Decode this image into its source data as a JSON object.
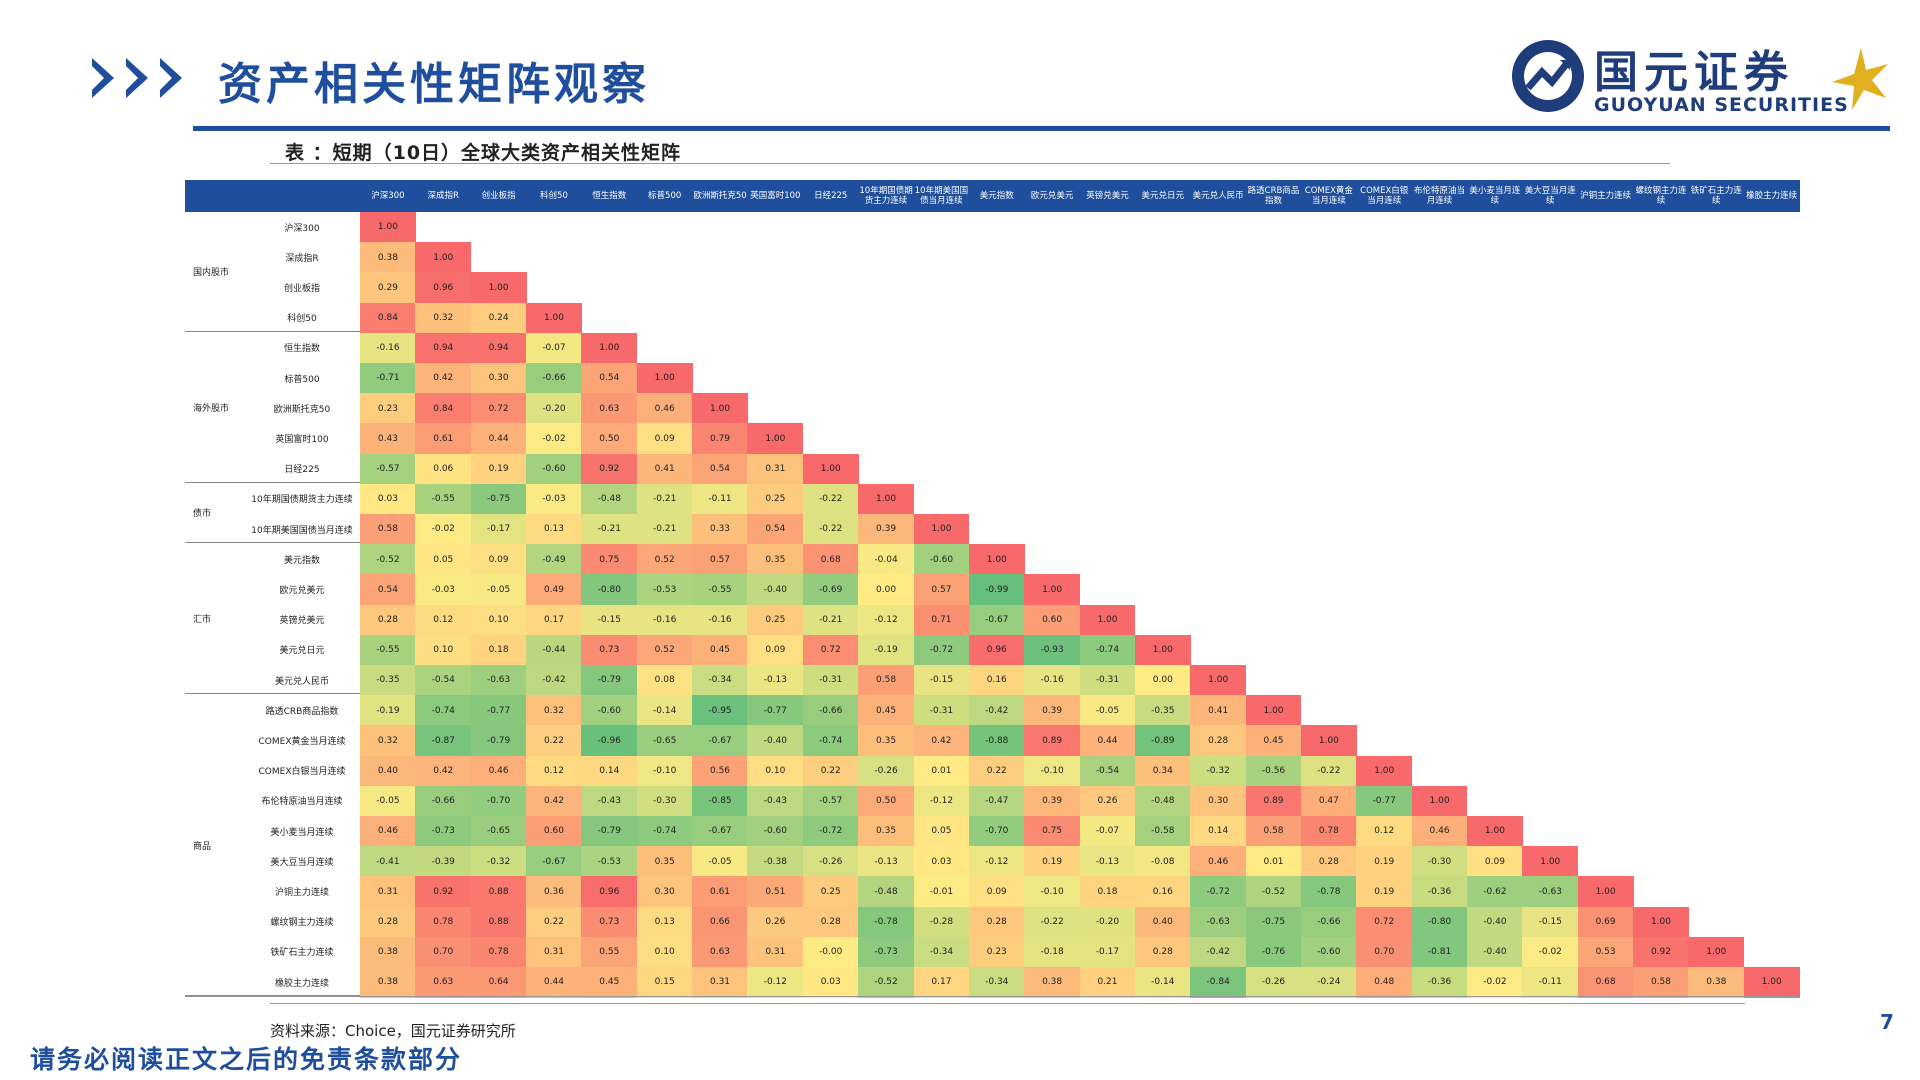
{
  "header": {
    "title": "资产相关性矩阵观察",
    "logo_cn": "国元证券",
    "logo_en": "GUOYUAN SECURITIES",
    "accent_color": "#1f4e9c"
  },
  "table": {
    "caption": "表 ：短期（10日）全球大类资产相关性矩阵",
    "assets": [
      "沪深300",
      "深成指R",
      "创业板指",
      "科创50",
      "恒生指数",
      "标普500",
      "欧洲斯托克50",
      "英国富时100",
      "日经225",
      "10年期国债期货主力连续",
      "10年期美国国债当月连续",
      "美元指数",
      "欧元兑美元",
      "英镑兑美元",
      "美元兑日元",
      "美元兑人民币",
      "路透CRB商品指数",
      "COMEX黄金当月连续",
      "COMEX白银当月连续",
      "布伦特原油当月连续",
      "美小麦当月连续",
      "美大豆当月连续",
      "沪铜主力连续",
      "螺纹钢主力连续",
      "铁矿石主力连续",
      "橡胶主力连续"
    ],
    "groups": [
      {
        "label": "国内股市",
        "rows": 4
      },
      {
        "label": "海外股市",
        "rows": 5
      },
      {
        "label": "债市",
        "rows": 2
      },
      {
        "label": "汇市",
        "rows": 5
      },
      {
        "label": "商品",
        "rows": 10
      }
    ],
    "matrix": [
      [
        "1.00"
      ],
      [
        "0.38",
        "1.00"
      ],
      [
        "0.29",
        "0.96",
        "1.00"
      ],
      [
        "0.84",
        "0.32",
        "0.24",
        "1.00"
      ],
      [
        "-0.16",
        "0.94",
        "0.94",
        "-0.07",
        "1.00"
      ],
      [
        "-0.71",
        "0.42",
        "0.30",
        "-0.66",
        "0.54",
        "1.00"
      ],
      [
        "0.23",
        "0.84",
        "0.72",
        "-0.20",
        "0.63",
        "0.46",
        "1.00"
      ],
      [
        "0.43",
        "0.61",
        "0.44",
        "-0.02",
        "0.50",
        "0.09",
        "0.79",
        "1.00"
      ],
      [
        "-0.57",
        "0.06",
        "0.19",
        "-0.60",
        "0.92",
        "0.41",
        "0.54",
        "0.31",
        "1.00"
      ],
      [
        "0.03",
        "-0.55",
        "-0.75",
        "-0.03",
        "-0.48",
        "-0.21",
        "-0.11",
        "0.25",
        "-0.22",
        "1.00"
      ],
      [
        "0.58",
        "-0.02",
        "-0.17",
        "0.13",
        "-0.21",
        "-0.21",
        "0.33",
        "0.54",
        "-0.22",
        "0.39",
        "1.00"
      ],
      [
        "-0.52",
        "0.05",
        "0.09",
        "-0.49",
        "0.75",
        "0.52",
        "0.57",
        "0.35",
        "0.68",
        "-0.04",
        "-0.60",
        "1.00"
      ],
      [
        "0.54",
        "-0.03",
        "-0.05",
        "0.49",
        "-0.80",
        "-0.53",
        "-0.55",
        "-0.40",
        "-0.69",
        "0.00",
        "0.57",
        "-0.99",
        "1.00"
      ],
      [
        "0.28",
        "0.12",
        "0.10",
        "0.17",
        "-0.15",
        "-0.16",
        "-0.16",
        "0.25",
        "-0.21",
        "-0.12",
        "0.71",
        "-0.67",
        "0.60",
        "1.00"
      ],
      [
        "-0.55",
        "0.10",
        "0.18",
        "-0.44",
        "0.73",
        "0.52",
        "0.45",
        "0.09",
        "0.72",
        "-0.19",
        "-0.72",
        "0.96",
        "-0.93",
        "-0.74",
        "1.00"
      ],
      [
        "-0.35",
        "-0.54",
        "-0.63",
        "-0.42",
        "-0.79",
        "0.08",
        "-0.34",
        "-0.13",
        "-0.31",
        "0.58",
        "-0.15",
        "0.16",
        "-0.16",
        "-0.31",
        "0.00",
        "1.00"
      ],
      [
        "-0.19",
        "-0.74",
        "-0.77",
        "0.32",
        "-0.60",
        "-0.14",
        "-0.95",
        "-0.77",
        "-0.66",
        "0.45",
        "-0.31",
        "-0.42",
        "0.39",
        "-0.05",
        "-0.35",
        "0.41",
        "1.00"
      ],
      [
        "0.32",
        "-0.87",
        "-0.79",
        "0.22",
        "-0.96",
        "-0.65",
        "-0.67",
        "-0.40",
        "-0.74",
        "0.35",
        "0.42",
        "-0.88",
        "0.89",
        "0.44",
        "-0.89",
        "0.28",
        "0.45",
        "1.00"
      ],
      [
        "0.40",
        "0.42",
        "0.46",
        "0.12",
        "0.14",
        "-0.10",
        "0.56",
        "0.10",
        "0.22",
        "-0.26",
        "0.01",
        "0.22",
        "-0.10",
        "-0.54",
        "0.34",
        "-0.32",
        "-0.56",
        "-0.22",
        "1.00"
      ],
      [
        "-0.05",
        "-0.66",
        "-0.70",
        "0.42",
        "-0.43",
        "-0.30",
        "-0.85",
        "-0.43",
        "-0.57",
        "0.50",
        "-0.12",
        "-0.47",
        "0.39",
        "0.26",
        "-0.48",
        "0.30",
        "0.89",
        "0.47",
        "-0.77",
        "1.00"
      ],
      [
        "0.46",
        "-0.73",
        "-0.65",
        "0.60",
        "-0.79",
        "-0.74",
        "-0.67",
        "-0.60",
        "-0.72",
        "0.35",
        "0.05",
        "-0.70",
        "0.75",
        "-0.07",
        "-0.58",
        "0.14",
        "0.58",
        "0.78",
        "0.12",
        "0.46",
        "1.00"
      ],
      [
        "-0.41",
        "-0.39",
        "-0.32",
        "-0.67",
        "-0.53",
        "0.35",
        "-0.05",
        "-0.38",
        "-0.26",
        "-0.13",
        "0.03",
        "-0.12",
        "0.19",
        "-0.13",
        "-0.08",
        "0.46",
        "0.01",
        "0.28",
        "0.19",
        "-0.30",
        "0.09",
        "1.00"
      ],
      [
        "0.31",
        "0.92",
        "0.88",
        "0.36",
        "0.96",
        "0.30",
        "0.61",
        "0.51",
        "0.25",
        "-0.48",
        "-0.01",
        "0.09",
        "-0.10",
        "0.18",
        "0.16",
        "-0.72",
        "-0.52",
        "-0.78",
        "0.19",
        "-0.36",
        "-0.62",
        "-0.63",
        "1.00"
      ],
      [
        "0.28",
        "0.78",
        "0.88",
        "0.22",
        "0.73",
        "0.13",
        "0.66",
        "0.26",
        "0.28",
        "-0.78",
        "-0.28",
        "0.28",
        "-0.22",
        "-0.20",
        "0.40",
        "-0.63",
        "-0.75",
        "-0.66",
        "0.72",
        "-0.80",
        "-0.40",
        "-0.15",
        "0.69",
        "1.00"
      ],
      [
        "0.38",
        "0.70",
        "0.78",
        "0.31",
        "0.55",
        "0.10",
        "0.63",
        "0.31",
        "-0.00",
        "-0.73",
        "-0.34",
        "0.23",
        "-0.18",
        "-0.17",
        "0.28",
        "-0.42",
        "-0.76",
        "-0.60",
        "0.70",
        "-0.81",
        "-0.40",
        "-0.02",
        "0.53",
        "0.92",
        "1.00"
      ],
      [
        "0.38",
        "0.63",
        "0.64",
        "0.44",
        "0.45",
        "0.15",
        "0.31",
        "-0.12",
        "0.03",
        "-0.52",
        "0.17",
        "-0.34",
        "0.38",
        "0.21",
        "-0.14",
        "-0.84",
        "-0.26",
        "-0.24",
        "0.48",
        "-0.36",
        "-0.02",
        "-0.11",
        "0.68",
        "0.58",
        "0.38",
        "1.00"
      ]
    ]
  },
  "footer": {
    "source": "资料来源：Choice，国元证券研究所",
    "page_number": "7",
    "disclaimer": "请务必阅读正文之后的免责条款部分"
  }
}
